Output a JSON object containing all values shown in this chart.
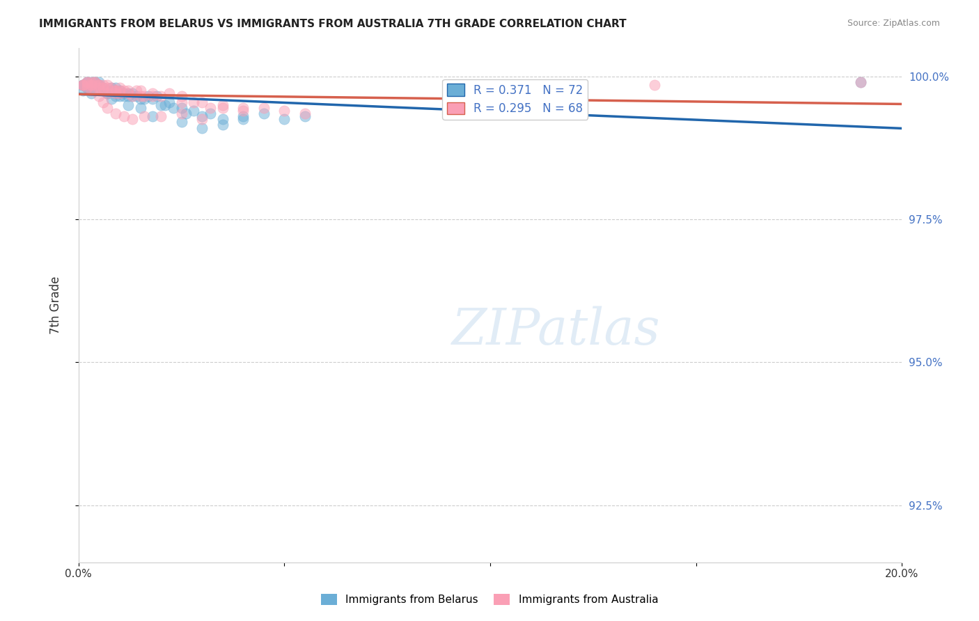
{
  "title": "IMMIGRANTS FROM BELARUS VS IMMIGRANTS FROM AUSTRALIA 7TH GRADE CORRELATION CHART",
  "source": "Source: ZipAtlas.com",
  "xlabel": "",
  "ylabel": "7th Grade",
  "legend_label_blue": "Immigrants from Belarus",
  "legend_label_pink": "Immigrants from Australia",
  "r_blue": 0.371,
  "n_blue": 72,
  "r_pink": 0.295,
  "n_pink": 68,
  "color_blue": "#6baed6",
  "color_pink": "#fa9fb5",
  "line_color_blue": "#2166ac",
  "line_color_pink": "#d6604d",
  "xlim": [
    0.0,
    0.2
  ],
  "ylim": [
    0.915,
    1.005
  ],
  "yticks": [
    0.925,
    0.95,
    0.975,
    1.0
  ],
  "ytick_labels": [
    "92.5%",
    "95.0%",
    "97.5%",
    "100.0%"
  ],
  "xticks": [
    0.0,
    0.05,
    0.1,
    0.15,
    0.2
  ],
  "xtick_labels": [
    "0.0%",
    "",
    "",
    "",
    "20.0%"
  ],
  "watermark": "ZIPatlas",
  "blue_x": [
    0.001,
    0.001,
    0.002,
    0.002,
    0.003,
    0.003,
    0.003,
    0.004,
    0.004,
    0.004,
    0.005,
    0.005,
    0.005,
    0.006,
    0.006,
    0.007,
    0.007,
    0.008,
    0.008,
    0.009,
    0.009,
    0.009,
    0.01,
    0.01,
    0.011,
    0.011,
    0.012,
    0.012,
    0.013,
    0.013,
    0.014,
    0.015,
    0.016,
    0.017,
    0.018,
    0.019,
    0.02,
    0.021,
    0.022,
    0.023,
    0.025,
    0.026,
    0.028,
    0.03,
    0.032,
    0.035,
    0.04,
    0.045,
    0.05,
    0.055,
    0.001,
    0.001,
    0.002,
    0.002,
    0.003,
    0.003,
    0.004,
    0.006,
    0.007,
    0.008,
    0.009,
    0.01,
    0.012,
    0.015,
    0.018,
    0.025,
    0.03,
    0.035,
    0.04,
    0.19,
    0.001,
    0.002
  ],
  "blue_y": [
    0.9975,
    0.9985,
    0.9985,
    0.999,
    0.9985,
    0.9985,
    0.999,
    0.9985,
    0.999,
    0.999,
    0.9985,
    0.999,
    0.9985,
    0.9975,
    0.998,
    0.9975,
    0.997,
    0.9975,
    0.998,
    0.997,
    0.9975,
    0.998,
    0.997,
    0.9975,
    0.9965,
    0.997,
    0.9965,
    0.997,
    0.9965,
    0.997,
    0.9965,
    0.996,
    0.996,
    0.9965,
    0.996,
    0.9965,
    0.995,
    0.995,
    0.9955,
    0.9945,
    0.9945,
    0.9935,
    0.994,
    0.993,
    0.9935,
    0.9925,
    0.993,
    0.9935,
    0.9925,
    0.993,
    0.9985,
    0.9985,
    0.998,
    0.998,
    0.998,
    0.997,
    0.9975,
    0.9975,
    0.997,
    0.996,
    0.9965,
    0.9965,
    0.995,
    0.9945,
    0.993,
    0.992,
    0.991,
    0.9915,
    0.9925,
    0.999,
    0.9985,
    0.999
  ],
  "pink_x": [
    0.001,
    0.002,
    0.002,
    0.003,
    0.003,
    0.004,
    0.004,
    0.005,
    0.005,
    0.006,
    0.006,
    0.007,
    0.007,
    0.008,
    0.009,
    0.009,
    0.01,
    0.01,
    0.011,
    0.012,
    0.013,
    0.014,
    0.015,
    0.016,
    0.018,
    0.02,
    0.022,
    0.025,
    0.028,
    0.032,
    0.035,
    0.04,
    0.045,
    0.001,
    0.002,
    0.003,
    0.004,
    0.005,
    0.006,
    0.007,
    0.008,
    0.009,
    0.01,
    0.012,
    0.015,
    0.018,
    0.025,
    0.03,
    0.035,
    0.04,
    0.05,
    0.055,
    0.001,
    0.002,
    0.003,
    0.004,
    0.005,
    0.006,
    0.007,
    0.009,
    0.011,
    0.013,
    0.016,
    0.02,
    0.025,
    0.03,
    0.19,
    0.14
  ],
  "pink_y": [
    0.9985,
    0.999,
    0.9985,
    0.9985,
    0.999,
    0.9985,
    0.999,
    0.998,
    0.9985,
    0.998,
    0.9975,
    0.997,
    0.9985,
    0.9975,
    0.997,
    0.9975,
    0.9975,
    0.997,
    0.9975,
    0.997,
    0.9965,
    0.9975,
    0.9965,
    0.9965,
    0.997,
    0.9965,
    0.997,
    0.9955,
    0.9955,
    0.9945,
    0.995,
    0.9945,
    0.9945,
    0.9985,
    0.999,
    0.9985,
    0.999,
    0.9985,
    0.9985,
    0.998,
    0.998,
    0.9975,
    0.998,
    0.9975,
    0.9975,
    0.9965,
    0.9965,
    0.9955,
    0.9945,
    0.994,
    0.994,
    0.9935,
    0.9985,
    0.998,
    0.9975,
    0.9975,
    0.9965,
    0.9955,
    0.9945,
    0.9935,
    0.993,
    0.9925,
    0.993,
    0.993,
    0.9935,
    0.9925,
    0.999,
    0.9985
  ]
}
